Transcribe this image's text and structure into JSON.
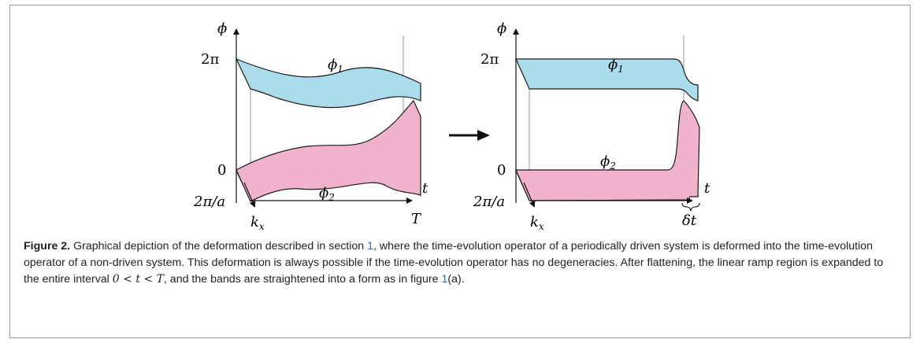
{
  "figure": {
    "left_panel": {
      "axis_y": "ϕ",
      "tick_top": "2π",
      "tick_zero": "0",
      "tick_kx": "2π/a",
      "axis_t": "t",
      "axis_k": "k",
      "axis_k_sub": "x",
      "tick_T": "T",
      "band1_sym": "ϕ",
      "band1_sub": "1",
      "band2_sym": "ϕ",
      "band2_sub": "2"
    },
    "arrow": "→",
    "right_panel": {
      "axis_y": "ϕ",
      "tick_top": "2π",
      "tick_zero": "0",
      "tick_kx": "2π/a",
      "axis_t": "t",
      "axis_k": "k",
      "axis_k_sub": "x",
      "tick_dt": "δt",
      "band1_sym": "ϕ",
      "band1_sub": "1",
      "band2_sym": "ϕ",
      "band2_sub": "2"
    },
    "colors": {
      "band1": "#aadcec",
      "band2": "#f1b2cd",
      "frame": "#9a9a9a"
    }
  },
  "caption": {
    "label": "Figure 2.",
    "text_a": " Graphical depiction of the deformation described in section ",
    "ref_section": "1",
    "text_b": ", where the time-evolution operator of a periodically driven system is deformed into the time-evolution operator of a non-driven system. This deformation is always possible if the time-evolution operator has no degeneracies. After flattening, the linear ramp region is expanded to the entire interval ",
    "math_interval": "0 < t < T",
    "text_c": ", and the bands are straightened into a form as in figure ",
    "ref_figure": "1",
    "text_d": "(a)."
  }
}
